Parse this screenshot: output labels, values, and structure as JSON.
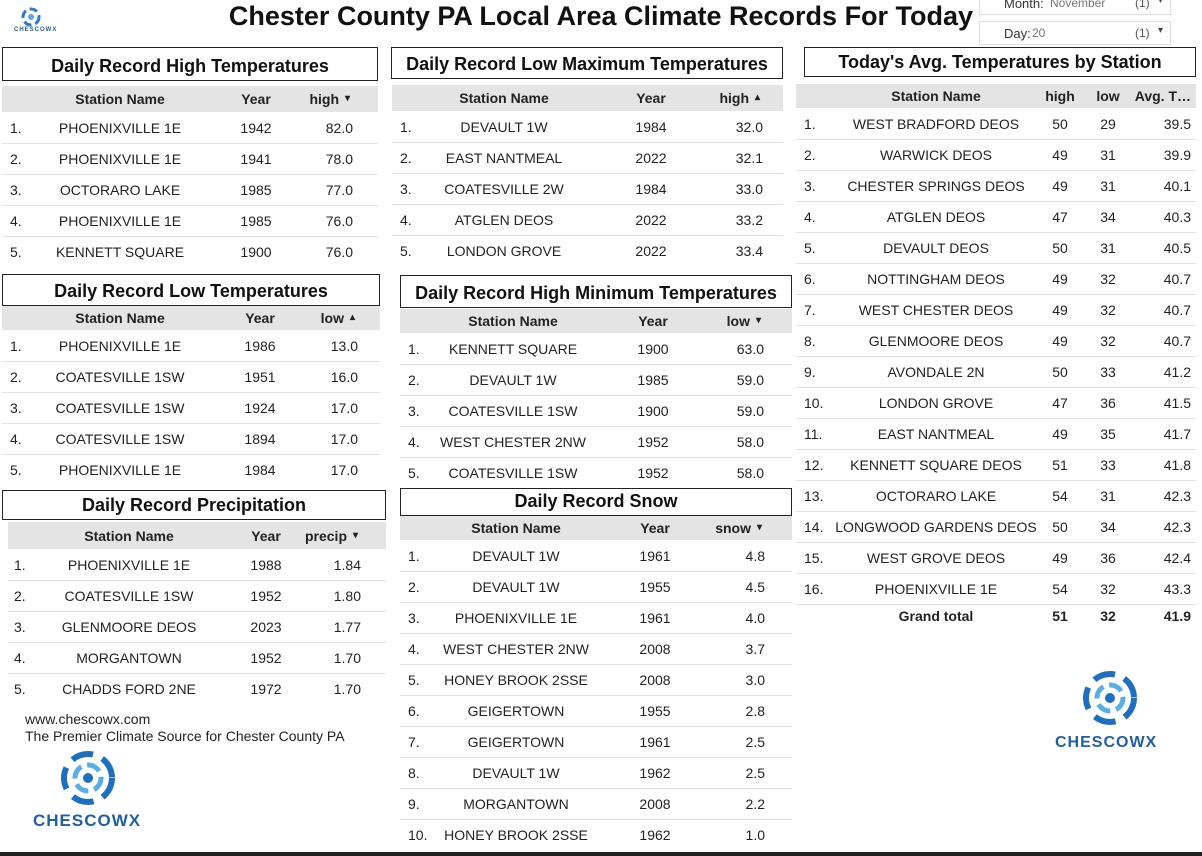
{
  "header": {
    "title": "Chester County PA Local Area Climate Records For Today",
    "logo_text": "CHESCOWX"
  },
  "filters": [
    {
      "label": "Month:",
      "value": "November",
      "count": "(1)"
    },
    {
      "label": "Day:",
      "value": "20",
      "count": "(1)"
    }
  ],
  "tables": [
    {
      "title": "Daily Record High Temperatures",
      "columns": [
        "Station Name",
        "Year",
        "high"
      ],
      "sort_column": 2,
      "sort": "descending",
      "rows": [
        [
          "1.",
          "PHOENIXVILLE 1E",
          "1942",
          "82.0"
        ],
        [
          "2.",
          "PHOENIXVILLE 1E",
          "1941",
          "78.0"
        ],
        [
          "3.",
          "OCTORARO LAKE",
          "1985",
          "77.0"
        ],
        [
          "4.",
          "PHOENIXVILLE 1E",
          "1985",
          "76.0"
        ],
        [
          "5.",
          "KENNETT SQUARE",
          "1900",
          "76.0"
        ]
      ]
    },
    {
      "title": "Daily Record Low Maximum Temperatures",
      "columns": [
        "Station Name",
        "Year",
        "high"
      ],
      "sort_column": 2,
      "sort": "ascending",
      "rows": [
        [
          "1.",
          "DEVAULT 1W",
          "1984",
          "32.0"
        ],
        [
          "2.",
          "EAST NANTMEAL",
          "2022",
          "32.1"
        ],
        [
          "3.",
          "COATESVILLE 2W",
          "1984",
          "33.0"
        ],
        [
          "4.",
          "ATGLEN DEOS",
          "2022",
          "33.2"
        ],
        [
          "5.",
          "LONDON GROVE",
          "2022",
          "33.4"
        ]
      ]
    },
    {
      "title": "Today's Avg. Temperatures by Station",
      "columns": [
        "Station Name",
        "high",
        "low",
        "Avg. T…"
      ],
      "rows": [
        [
          "1.",
          "WEST BRADFORD DEOS",
          "50",
          "29",
          "39.5"
        ],
        [
          "2.",
          "WARWICK DEOS",
          "49",
          "31",
          "39.9"
        ],
        [
          "3.",
          "CHESTER SPRINGS DEOS",
          "49",
          "31",
          "40.1"
        ],
        [
          "4.",
          "ATGLEN DEOS",
          "47",
          "34",
          "40.3"
        ],
        [
          "5.",
          "DEVAULT DEOS",
          "50",
          "31",
          "40.5"
        ],
        [
          "6.",
          "NOTTINGHAM DEOS",
          "49",
          "32",
          "40.7"
        ],
        [
          "7.",
          "WEST CHESTER DEOS",
          "49",
          "32",
          "40.7"
        ],
        [
          "8.",
          "GLENMOORE DEOS",
          "49",
          "32",
          "40.7"
        ],
        [
          "9.",
          "AVONDALE 2N",
          "50",
          "33",
          "41.2"
        ],
        [
          "10.",
          "LONDON GROVE",
          "47",
          "36",
          "41.5"
        ],
        [
          "11.",
          "EAST NANTMEAL",
          "49",
          "35",
          "41.7"
        ],
        [
          "12.",
          "KENNETT SQUARE DEOS",
          "51",
          "33",
          "41.8"
        ],
        [
          "13.",
          "OCTORARO LAKE",
          "54",
          "31",
          "42.3"
        ],
        [
          "14.",
          "LONGWOOD GARDENS DEOS",
          "50",
          "34",
          "42.3"
        ],
        [
          "15.",
          "WEST GROVE DEOS",
          "49",
          "36",
          "42.4"
        ],
        [
          "16.",
          "PHOENIXVILLE 1E",
          "54",
          "32",
          "43.3"
        ]
      ],
      "grand_total": {
        "label": "Grand total",
        "values": [
          "51",
          "32",
          "41.9"
        ]
      }
    },
    {
      "title": "Daily Record Low Temperatures",
      "columns": [
        "Station Name",
        "Year",
        "low"
      ],
      "sort_column": 2,
      "sort": "ascending",
      "rows": [
        [
          "1.",
          "PHOENIXVILLE 1E",
          "1986",
          "13.0"
        ],
        [
          "2.",
          "COATESVILLE 1SW",
          "1951",
          "16.0"
        ],
        [
          "3.",
          "COATESVILLE 1SW",
          "1924",
          "17.0"
        ],
        [
          "4.",
          "COATESVILLE 1SW",
          "1894",
          "17.0"
        ],
        [
          "5.",
          "PHOENIXVILLE 1E",
          "1984",
          "17.0"
        ]
      ]
    },
    {
      "title": "Daily Record High Minimum Temperatures",
      "columns": [
        "Station Name",
        "Year",
        "low"
      ],
      "sort_column": 2,
      "sort": "descending",
      "rows": [
        [
          "1.",
          "KENNETT SQUARE",
          "1900",
          "63.0"
        ],
        [
          "2.",
          "DEVAULT 1W",
          "1985",
          "59.0"
        ],
        [
          "3.",
          "COATESVILLE 1SW",
          "1900",
          "59.0"
        ],
        [
          "4.",
          "WEST CHESTER 2NW",
          "1952",
          "58.0"
        ],
        [
          "5.",
          "COATESVILLE 1SW",
          "1952",
          "58.0"
        ]
      ]
    },
    {
      "title": "Daily Record Precipitation",
      "columns": [
        "Station Name",
        "Year",
        "precip"
      ],
      "sort_column": 2,
      "sort": "descending",
      "rows": [
        [
          "1.",
          "PHOENIXVILLE 1E",
          "1988",
          "1.84"
        ],
        [
          "2.",
          "COATESVILLE 1SW",
          "1952",
          "1.80"
        ],
        [
          "3.",
          "GLENMOORE DEOS",
          "2023",
          "1.77"
        ],
        [
          "4.",
          "MORGANTOWN",
          "1952",
          "1.70"
        ],
        [
          "5.",
          "CHADDS FORD 2NE",
          "1972",
          "1.70"
        ]
      ]
    },
    {
      "title": "Daily Record Snow",
      "columns": [
        "Station Name",
        "Year",
        "snow"
      ],
      "sort_column": 2,
      "sort": "descending",
      "rows": [
        [
          "1.",
          "DEVAULT 1W",
          "1961",
          "4.8"
        ],
        [
          "2.",
          "DEVAULT 1W",
          "1955",
          "4.5"
        ],
        [
          "3.",
          "PHOENIXVILLE 1E",
          "1961",
          "4.0"
        ],
        [
          "4.",
          "WEST CHESTER 2NW",
          "2008",
          "3.7"
        ],
        [
          "5.",
          "HONEY BROOK 2SSE",
          "2008",
          "3.0"
        ],
        [
          "6.",
          "GEIGERTOWN",
          "1955",
          "2.8"
        ],
        [
          "7.",
          "GEIGERTOWN",
          "1961",
          "2.5"
        ],
        [
          "8.",
          "DEVAULT 1W",
          "1962",
          "2.5"
        ],
        [
          "9.",
          "MORGANTOWN",
          "2008",
          "2.2"
        ],
        [
          "10.",
          "HONEY BROOK 2SSE",
          "1962",
          "1.0"
        ]
      ]
    }
  ],
  "footer": {
    "url": "www.chescowx.com",
    "tagline": "The Premier Climate Source for Chester County PA"
  }
}
